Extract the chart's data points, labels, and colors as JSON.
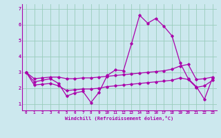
{
  "xlabel": "Windchill (Refroidissement éolien,°C)",
  "background_color": "#cce8ee",
  "grid_color": "#99ccbb",
  "line_color": "#aa00aa",
  "xlim": [
    -0.5,
    23.5
  ],
  "ylim": [
    0.6,
    7.3
  ],
  "yticks": [
    1,
    2,
    3,
    4,
    5,
    6,
    7
  ],
  "xticks": [
    0,
    1,
    2,
    3,
    4,
    5,
    6,
    7,
    8,
    9,
    10,
    11,
    12,
    13,
    14,
    15,
    16,
    17,
    18,
    19,
    20,
    21,
    22,
    23
  ],
  "series": {
    "main": [
      3.0,
      2.4,
      2.5,
      2.6,
      2.3,
      1.5,
      1.7,
      1.8,
      1.1,
      1.75,
      2.8,
      3.15,
      3.1,
      4.8,
      6.6,
      6.1,
      6.4,
      5.9,
      5.3,
      3.6,
      2.6,
      2.1,
      1.3,
      2.65
    ],
    "upper": [
      3.0,
      2.6,
      2.65,
      2.7,
      2.7,
      2.6,
      2.6,
      2.65,
      2.65,
      2.7,
      2.75,
      2.8,
      2.85,
      2.9,
      2.95,
      3.0,
      3.05,
      3.1,
      3.2,
      3.4,
      3.5,
      2.55,
      2.6,
      2.7
    ],
    "lower": [
      3.0,
      2.2,
      2.25,
      2.3,
      2.15,
      1.85,
      1.9,
      1.95,
      1.95,
      2.0,
      2.1,
      2.15,
      2.2,
      2.25,
      2.3,
      2.35,
      2.4,
      2.45,
      2.5,
      2.65,
      2.55,
      2.05,
      2.15,
      2.5
    ]
  }
}
